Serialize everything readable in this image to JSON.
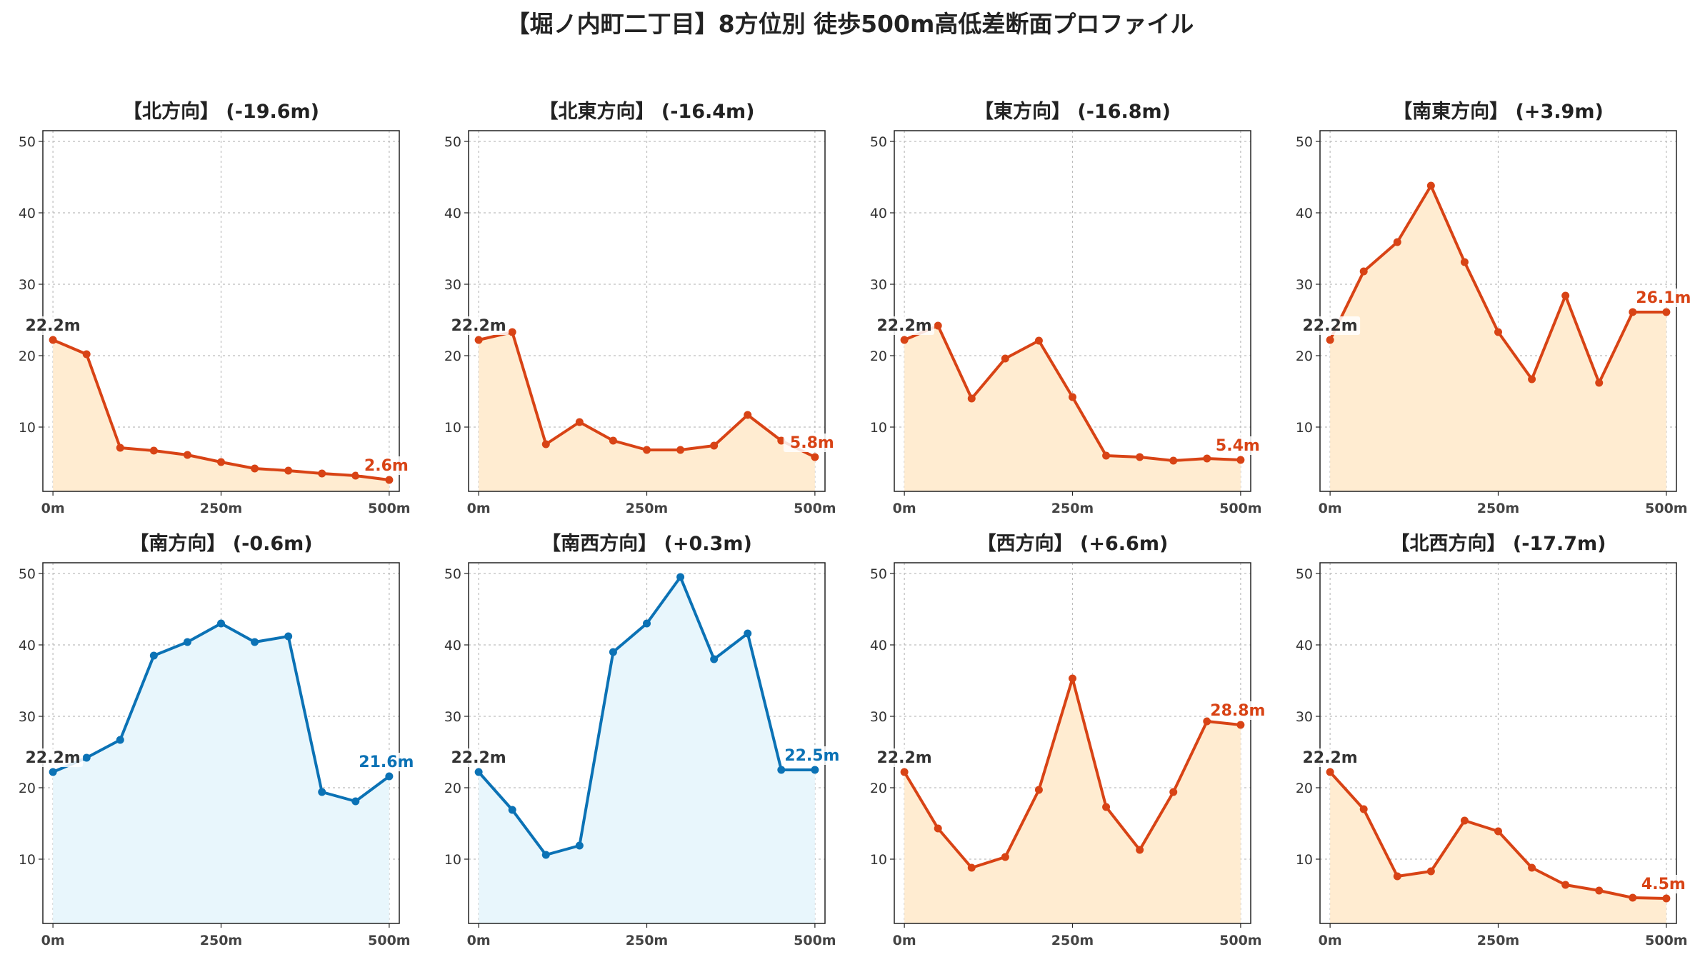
{
  "chart_data": {
    "type": "line",
    "title": "【堀ノ内町二丁目】8方位別 徒歩500m高低差断面プロファイル",
    "layout": "grid-2x4",
    "x": [
      0,
      50,
      100,
      150,
      200,
      250,
      300,
      350,
      400,
      450,
      500
    ],
    "xticks": [
      0,
      250,
      500
    ],
    "xtick_labels": [
      "0m",
      "250m",
      "500m"
    ],
    "xlim": [
      -15,
      515
    ],
    "yticks": [
      10,
      20,
      30,
      40,
      50
    ],
    "ylim": [
      1,
      51.5
    ],
    "grid": true,
    "colors": {
      "down_line": "#d84315",
      "down_fill": "#ffecd1",
      "up_line": "#0b72b5",
      "up_fill": "#e8f6fc",
      "start_label": "#333333"
    },
    "panels": [
      {
        "title": "【北方向】 (-19.6m)",
        "trend": "down",
        "values": [
          22.2,
          20.2,
          7.1,
          6.7,
          6.1,
          5.1,
          4.2,
          3.9,
          3.5,
          3.2,
          2.6
        ],
        "start_label": "22.2m",
        "end_label": "2.6m"
      },
      {
        "title": "【北東方向】 (-16.4m)",
        "trend": "down",
        "values": [
          22.2,
          23.3,
          7.6,
          10.7,
          8.1,
          6.8,
          6.8,
          7.4,
          11.7,
          8.1,
          5.8
        ],
        "start_label": "22.2m",
        "end_label": "5.8m"
      },
      {
        "title": "【東方向】 (-16.8m)",
        "trend": "down",
        "values": [
          22.2,
          24.2,
          14.0,
          19.6,
          22.1,
          14.2,
          6.0,
          5.8,
          5.3,
          5.6,
          5.4
        ],
        "start_label": "22.2m",
        "end_label": "5.4m"
      },
      {
        "title": "【南東方向】 (+3.9m)",
        "trend": "down",
        "values": [
          22.2,
          31.8,
          35.9,
          43.8,
          33.1,
          23.3,
          16.7,
          28.4,
          16.2,
          26.1,
          26.1
        ],
        "start_label": "22.2m",
        "end_label": "26.1m"
      },
      {
        "title": "【南方向】 (-0.6m)",
        "trend": "up",
        "values": [
          22.2,
          24.2,
          26.7,
          38.5,
          40.4,
          43.0,
          40.4,
          41.2,
          19.4,
          18.1,
          21.6
        ],
        "start_label": "22.2m",
        "end_label": "21.6m"
      },
      {
        "title": "【南西方向】 (+0.3m)",
        "trend": "up",
        "values": [
          22.2,
          16.9,
          10.6,
          11.9,
          39.0,
          43.0,
          49.5,
          38.0,
          41.6,
          22.5,
          22.5
        ],
        "start_label": "22.2m",
        "end_label": "22.5m"
      },
      {
        "title": "【西方向】 (+6.6m)",
        "trend": "down",
        "values": [
          22.2,
          14.3,
          8.8,
          10.3,
          19.7,
          35.3,
          17.3,
          11.3,
          19.4,
          29.3,
          28.8
        ],
        "start_label": "22.2m",
        "end_label": "28.8m"
      },
      {
        "title": "【北西方向】 (-17.7m)",
        "trend": "down",
        "values": [
          22.2,
          17.0,
          7.6,
          8.3,
          15.4,
          13.9,
          8.8,
          6.4,
          5.6,
          4.6,
          4.5
        ],
        "start_label": "22.2m",
        "end_label": "4.5m"
      }
    ]
  }
}
